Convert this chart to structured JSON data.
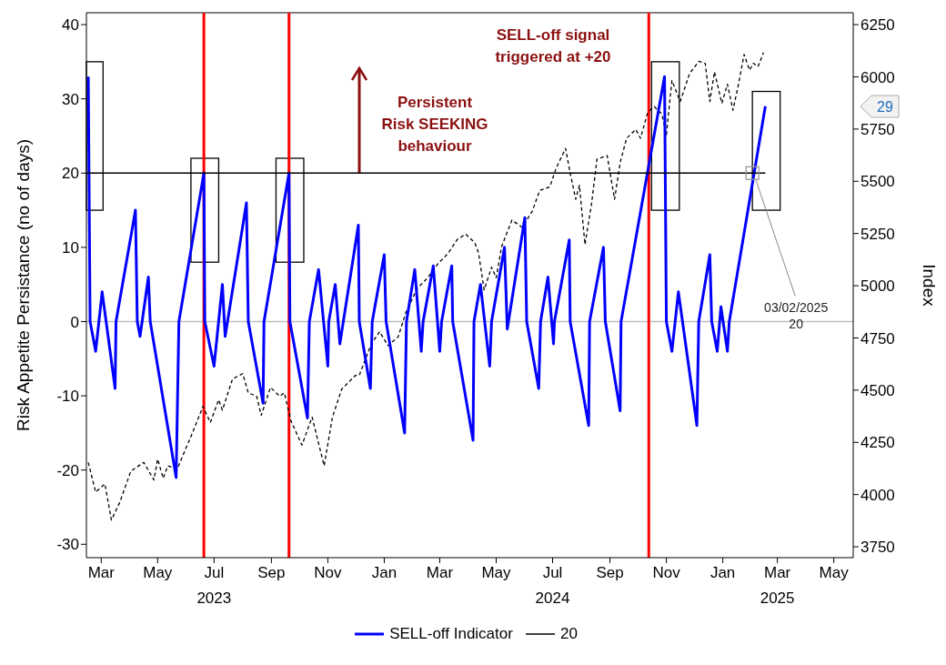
{
  "chart_data": {
    "type": "line",
    "ylabel": "Risk Appetite Persistance (no of days)",
    "y2label": "Index",
    "xlim": [
      "2023-02-13",
      "2025-05-22"
    ],
    "xticks": [
      {
        "value": "2023-03-01",
        "label": "Mar"
      },
      {
        "value": "2023-05-01",
        "label": "May"
      },
      {
        "value": "2023-07-01",
        "label": "Jul\n2023"
      },
      {
        "value": "2023-09-01",
        "label": "Sep"
      },
      {
        "value": "2023-11-01",
        "label": "Nov"
      },
      {
        "value": "2024-01-01",
        "label": "Jan"
      },
      {
        "value": "2024-03-01",
        "label": "Mar"
      },
      {
        "value": "2024-05-01",
        "label": "May"
      },
      {
        "value": "2024-07-01",
        "label": "Jul\n2024"
      },
      {
        "value": "2024-09-01",
        "label": "Sep"
      },
      {
        "value": "2024-11-01",
        "label": "Nov"
      },
      {
        "value": "2025-01-01",
        "label": "Jan"
      },
      {
        "value": "2025-03-01",
        "label": "Mar\n2025"
      },
      {
        "value": "2025-05-01",
        "label": "May"
      }
    ],
    "ylim": [
      -31.8,
      41.6
    ],
    "yticks": [
      -30,
      -20,
      -10,
      0,
      10,
      20,
      30,
      40
    ],
    "y2lim": [
      3698,
      6307
    ],
    "y2ticks": [
      3750,
      4000,
      4250,
      4500,
      4750,
      5000,
      5250,
      5500,
      5750,
      6000,
      6250
    ],
    "grid": false,
    "legend": "bottom",
    "marker": "none",
    "series": [
      {
        "color": "#000000",
        "axis": "y2",
        "line_style": "dashed",
        "x": [
          "2023-02-15",
          "2023-02-23",
          "2023-03-05",
          "2023-03-12",
          "2023-03-21",
          "2023-04-02",
          "2023-04-16",
          "2023-04-27",
          "2023-05-01",
          "2023-05-07",
          "2023-05-12",
          "2023-05-22",
          "2023-05-29",
          "2023-06-06",
          "2023-06-19",
          "2023-06-27",
          "2023-07-06",
          "2023-07-10",
          "2023-07-21",
          "2023-08-01",
          "2023-08-07",
          "2023-08-16",
          "2023-08-21",
          "2023-08-31",
          "2023-09-10",
          "2023-09-15",
          "2023-09-22",
          "2023-10-04",
          "2023-10-15",
          "2023-10-28",
          "2023-11-06",
          "2023-11-16",
          "2023-12-01",
          "2023-12-05",
          "2023-12-18",
          "2023-12-27",
          "2024-01-05",
          "2024-01-16",
          "2024-01-25",
          "2024-02-06",
          "2024-02-17",
          "2024-02-28",
          "2024-03-10",
          "2024-03-20",
          "2024-03-29",
          "2024-04-08",
          "2024-04-12",
          "2024-04-18",
          "2024-04-26",
          "2024-05-01",
          "2024-05-07",
          "2024-05-18",
          "2024-05-29",
          "2024-06-09",
          "2024-06-17",
          "2024-06-28",
          "2024-07-05",
          "2024-07-15",
          "2024-07-20",
          "2024-07-26",
          "2024-07-30",
          "2024-08-05",
          "2024-08-12",
          "2024-08-18",
          "2024-08-29",
          "2024-09-06",
          "2024-09-12",
          "2024-09-19",
          "2024-09-29",
          "2024-10-04",
          "2024-10-12",
          "2024-10-19",
          "2024-10-27",
          "2024-11-01",
          "2024-11-07",
          "2024-11-16",
          "2024-11-26",
          "2024-12-06",
          "2024-12-13",
          "2024-12-18",
          "2024-12-23",
          "2024-12-31",
          "2025-01-06",
          "2025-01-12",
          "2025-01-18",
          "2025-01-24",
          "2025-01-30",
          "2025-02-03",
          "2025-02-08",
          "2025-02-14"
        ],
        "values": [
          4154,
          4012,
          4051,
          3878,
          3962,
          4112,
          4154,
          4070,
          4170,
          4078,
          4138,
          4121,
          4195,
          4278,
          4422,
          4345,
          4454,
          4404,
          4554,
          4579,
          4487,
          4471,
          4379,
          4513,
          4471,
          4487,
          4354,
          4237,
          4371,
          4138,
          4371,
          4505,
          4571,
          4571,
          4721,
          4780,
          4713,
          4755,
          4880,
          4989,
          5038,
          5105,
          5155,
          5222,
          5247,
          5205,
          5155,
          4980,
          5089,
          5038,
          5189,
          5314,
          5280,
          5356,
          5456,
          5473,
          5565,
          5657,
          5540,
          5414,
          5481,
          5197,
          5389,
          5606,
          5623,
          5414,
          5589,
          5706,
          5748,
          5706,
          5832,
          5857,
          5823,
          5723,
          5982,
          5882,
          6015,
          6074,
          6065,
          5882,
          6024,
          5873,
          5965,
          5840,
          5965,
          6107,
          6032,
          6065,
          6049,
          6116
        ]
      },
      {
        "name": "SELL-off Indicator",
        "color": "#0000ff",
        "line_style": "solid",
        "x": [
          "2023-02-15",
          "2023-02-17",
          "2023-02-23",
          "2023-03-02",
          "2023-03-16",
          "2023-03-17",
          "2023-04-07",
          "2023-04-09",
          "2023-04-12",
          "2023-04-21",
          "2023-04-23",
          "2023-05-21",
          "2023-05-24",
          "2023-06-20",
          "2023-06-21",
          "2023-07-01",
          "2023-07-10",
          "2023-07-13",
          "2023-08-05",
          "2023-08-07",
          "2023-08-23",
          "2023-08-24",
          "2023-09-20",
          "2023-09-21",
          "2023-10-10",
          "2023-10-12",
          "2023-10-22",
          "2023-11-01",
          "2023-11-02",
          "2023-11-09",
          "2023-11-14",
          "2023-12-04",
          "2023-12-05",
          "2023-12-17",
          "2023-12-19",
          "2024-01-01",
          "2024-01-03",
          "2024-01-23",
          "2024-01-25",
          "2024-02-03",
          "2024-02-10",
          "2024-02-12",
          "2024-02-23",
          "2024-03-01",
          "2024-03-03",
          "2024-03-14",
          "2024-03-15",
          "2024-04-06",
          "2024-04-07",
          "2024-04-14",
          "2024-04-24",
          "2024-04-26",
          "2024-05-10",
          "2024-05-13",
          "2024-06-01",
          "2024-06-03",
          "2024-06-16",
          "2024-06-18",
          "2024-06-26",
          "2024-07-02",
          "2024-07-03",
          "2024-07-19",
          "2024-07-20",
          "2024-08-09",
          "2024-08-10",
          "2024-08-25",
          "2024-08-27",
          "2024-09-12",
          "2024-09-13",
          "2024-10-30",
          "2024-11-01",
          "2024-11-07",
          "2024-11-14",
          "2024-12-04",
          "2024-12-06",
          "2024-12-18",
          "2024-12-20",
          "2024-12-26",
          "2024-12-30",
          "2025-01-06",
          "2025-01-08",
          "2025-02-16"
        ],
        "values": [
          33,
          0,
          -4,
          4,
          -9,
          0,
          15,
          0,
          -2,
          6,
          0,
          -21,
          0,
          20,
          0,
          -6,
          5,
          -2,
          16,
          0,
          -11,
          0,
          20,
          0,
          -13,
          0,
          7,
          -6,
          0,
          5,
          -3,
          13,
          0,
          -9,
          0,
          9,
          0,
          -15,
          0,
          7,
          -4,
          0,
          7.5,
          -4,
          0,
          7.5,
          0,
          -16,
          0,
          5,
          -6,
          0,
          10,
          -1,
          14,
          0,
          -9,
          0,
          6,
          -3,
          0,
          11,
          0,
          -14,
          0,
          10,
          0,
          -12,
          0,
          33,
          0,
          -4,
          4,
          -14,
          0,
          9,
          0,
          -4,
          2,
          -4,
          0,
          29
        ]
      },
      {
        "name": "20",
        "color": "#000000",
        "line_style": "solid",
        "x": [
          "2023-02-13",
          "2025-02-16"
        ],
        "values": [
          20,
          20
        ]
      }
    ],
    "ref_lines": [
      {
        "axis": "y",
        "value": 0,
        "color": "#c0c0c0"
      },
      {
        "axis": "x",
        "value": "2023-06-20",
        "color": "#ff0000"
      },
      {
        "axis": "x",
        "value": "2023-09-20",
        "color": "#ff0000"
      },
      {
        "axis": "x",
        "value": "2024-10-13",
        "color": "#ff0000"
      }
    ],
    "annotations": [
      "SELL-off signal triggered at +20",
      "Persistent Risk SEEKING behaviour",
      {
        "text": "03/02/2025 20",
        "x": "2025-02-02",
        "y": 20
      },
      "29"
    ]
  }
}
